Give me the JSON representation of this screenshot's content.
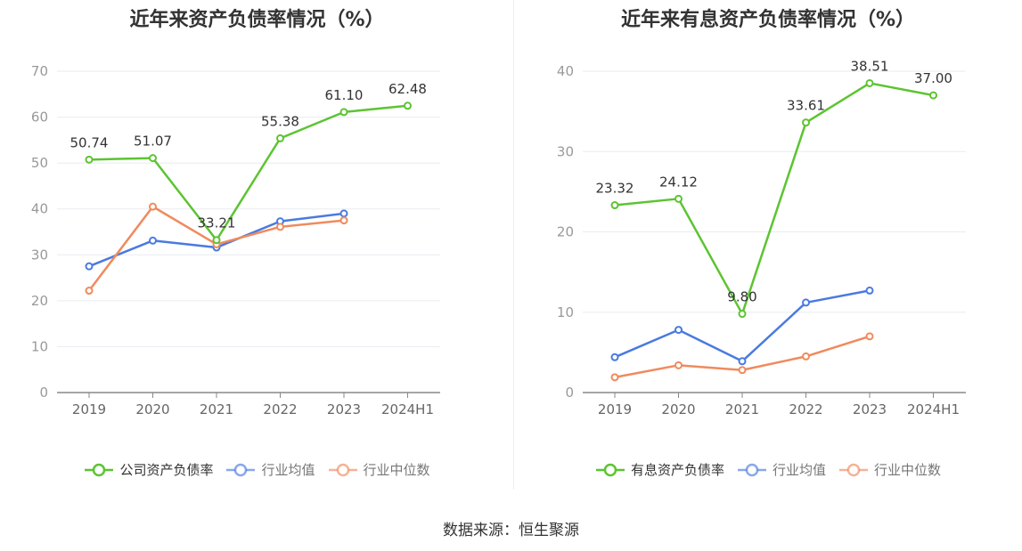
{
  "colors": {
    "company": "#5cc431",
    "industry_avg": "#4a7ae0",
    "industry_median": "#f08a5d",
    "grid": "#e8ebf2",
    "axis": "#999999",
    "text": "#333333"
  },
  "chart_data": [
    {
      "type": "line",
      "title": "近年来资产负债率情况（%）",
      "categories": [
        "2019",
        "2020",
        "2021",
        "2022",
        "2023",
        "2024H1"
      ],
      "ylim": [
        0,
        70
      ],
      "yticks": [
        0,
        10,
        20,
        30,
        40,
        50,
        60,
        70
      ],
      "series": [
        {
          "name": "公司资产负债率",
          "color": "#5cc431",
          "values": [
            50.74,
            51.07,
            33.21,
            55.38,
            61.1,
            62.48
          ],
          "labels": [
            "50.74",
            "51.07",
            "33.21",
            "55.38",
            "61.10",
            "62.48"
          ]
        },
        {
          "name": "行业均值",
          "color": "#4a7ae0",
          "values": [
            27.5,
            33.1,
            31.6,
            37.3,
            39.0,
            null
          ]
        },
        {
          "name": "行业中位数",
          "color": "#f08a5d",
          "values": [
            22.2,
            40.5,
            32.3,
            36.1,
            37.5,
            null
          ]
        }
      ]
    },
    {
      "type": "line",
      "title": "近年来有息资产负债率情况（%）",
      "categories": [
        "2019",
        "2020",
        "2021",
        "2022",
        "2023",
        "2024H1"
      ],
      "ylim": [
        0,
        40
      ],
      "yticks": [
        0,
        10,
        20,
        30,
        40
      ],
      "series": [
        {
          "name": "有息资产负债率",
          "color": "#5cc431",
          "values": [
            23.32,
            24.12,
            9.8,
            33.61,
            38.51,
            37.0
          ],
          "labels": [
            "23.32",
            "24.12",
            "9.80",
            "33.61",
            "38.51",
            "37.00"
          ]
        },
        {
          "name": "行业均值",
          "color": "#4a7ae0",
          "values": [
            4.4,
            7.8,
            3.9,
            11.2,
            12.7,
            null
          ]
        },
        {
          "name": "行业中位数",
          "color": "#f08a5d",
          "values": [
            1.9,
            3.4,
            2.8,
            4.5,
            7.0,
            null
          ]
        }
      ]
    }
  ],
  "source": "数据来源：恒生聚源"
}
